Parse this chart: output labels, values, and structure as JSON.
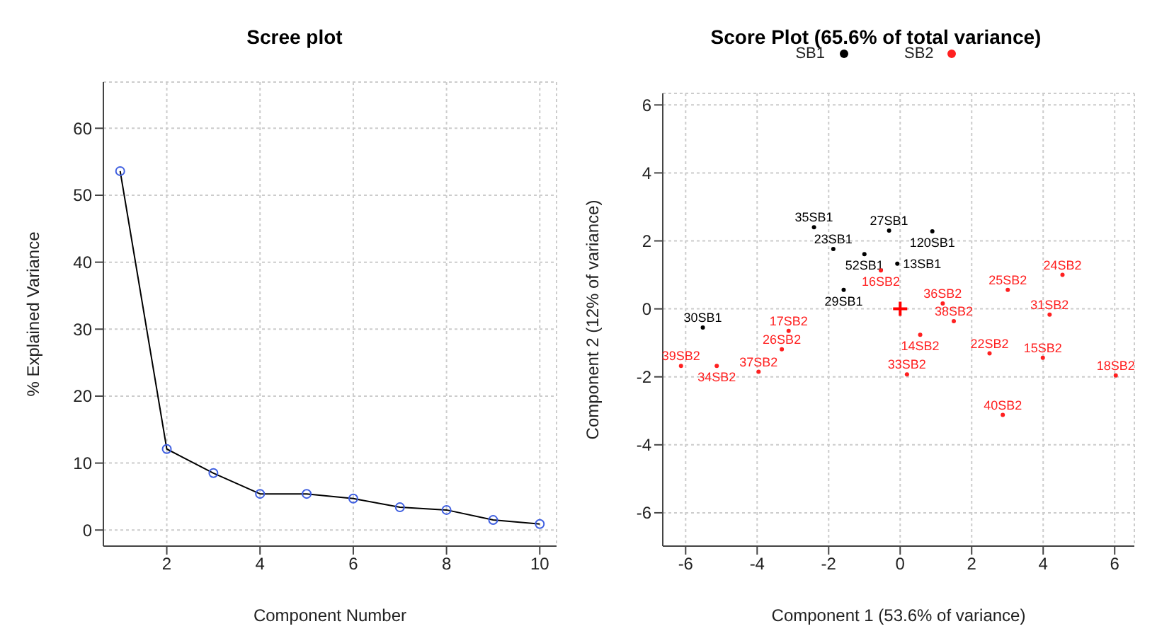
{
  "chart_data": [
    {
      "type": "line",
      "title": "Scree plot",
      "xlabel": "Component Number",
      "ylabel": "% Explained Variance",
      "x": [
        1,
        2,
        3,
        4,
        5,
        6,
        7,
        8,
        9,
        10
      ],
      "xlim": [
        0.64,
        10.36
      ],
      "xticks": [
        2,
        4,
        6,
        8,
        10
      ],
      "ylim": [
        -2.4,
        66.9
      ],
      "yticks": [
        0,
        10,
        20,
        30,
        40,
        50,
        60
      ],
      "grid": true,
      "series": [
        {
          "type": "line",
          "color": "#000000",
          "marker": "none",
          "values": [
            53.6,
            12.1,
            8.5,
            5.4,
            5.4,
            4.7,
            3.4,
            3.0,
            1.5,
            0.9
          ]
        },
        {
          "type": "scatter",
          "color": "#3f5fe0",
          "marker": "circle",
          "values": [
            53.6,
            12.1,
            8.5,
            5.4,
            5.4,
            4.7,
            3.4,
            3.0,
            1.5,
            0.9
          ]
        }
      ]
    },
    {
      "type": "scatter",
      "title": "Score Plot (65.6% of total variance)",
      "xlabel": "Component 1 (53.6% of variance)",
      "ylabel": "Component 2 (12% of variance)",
      "xlim": [
        -6.64,
        6.55
      ],
      "xticks": [
        -6,
        -4,
        -2,
        0,
        2,
        4,
        6
      ],
      "ylim": [
        -6.98,
        6.34
      ],
      "yticks": [
        -6,
        -4,
        -2,
        0,
        2,
        4,
        6
      ],
      "grid": true,
      "legend": "top",
      "series": [
        {
          "name": "SB1",
          "color": "#000000",
          "marker": "circle",
          "x": [
            -2.41,
            -0.31,
            0.9,
            -1.87,
            -1.0,
            -0.08,
            -1.58,
            -5.52
          ],
          "values": [
            2.4,
            2.3,
            2.28,
            1.76,
            1.61,
            1.33,
            0.56,
            -0.55
          ],
          "value_labels": [
            "35SB1",
            "27SB1",
            "120SB1",
            "23SB1",
            "52SB1",
            "13SB1",
            "29SB1",
            "30SB1"
          ]
        },
        {
          "name": "SB2",
          "color": "#ff2020",
          "marker": "circle",
          "x": [
            -0.54,
            4.54,
            3.01,
            1.19,
            4.18,
            1.5,
            0.56,
            -3.12,
            -3.31,
            2.5,
            3.99,
            -6.13,
            -5.13,
            -3.96,
            0.19,
            6.03,
            2.87
          ],
          "values": [
            1.13,
            1.0,
            0.56,
            0.16,
            -0.17,
            -0.36,
            -0.76,
            -0.65,
            -1.19,
            -1.31,
            -1.44,
            -1.68,
            -1.68,
            -1.85,
            -1.93,
            -1.96,
            -3.12
          ],
          "value_labels": [
            "16SB2",
            "24SB2",
            "25SB2",
            "36SB2",
            "31SB2",
            "38SB2",
            "14SB2",
            "17SB2",
            "26SB2",
            "22SB2",
            "15SB2",
            "39SB2",
            "34SB2",
            "37SB2",
            "33SB2",
            "18SB2",
            "40SB2"
          ]
        },
        {
          "color": "#ff0000",
          "marker": "cross",
          "x": [
            0
          ],
          "values": [
            0
          ]
        }
      ]
    }
  ]
}
